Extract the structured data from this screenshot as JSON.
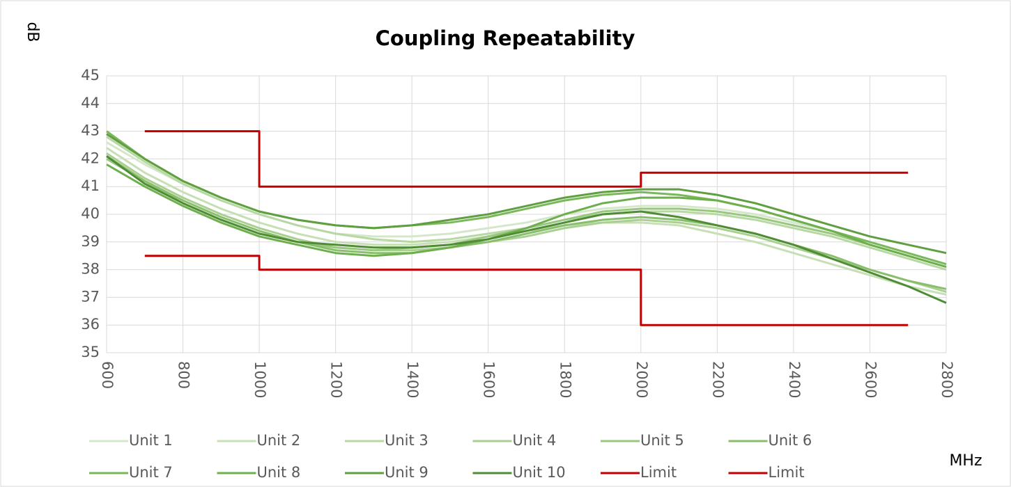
{
  "chart_data": {
    "type": "line",
    "title": "Coupling Repeatability",
    "y_label": "dB",
    "x_label": "MHz",
    "x": [
      600,
      700,
      800,
      900,
      1000,
      1100,
      1200,
      1300,
      1400,
      1500,
      1600,
      1700,
      1800,
      1900,
      2000,
      2100,
      2200,
      2300,
      2400,
      2500,
      2600,
      2700,
      2800
    ],
    "xlim": [
      600,
      2800
    ],
    "xticks": [
      600,
      800,
      1000,
      1200,
      1400,
      1600,
      1800,
      2000,
      2200,
      2400,
      2600,
      2800
    ],
    "ylim": [
      35,
      45
    ],
    "yticks": [
      35,
      36,
      37,
      38,
      39,
      40,
      41,
      42,
      43,
      44,
      45
    ],
    "grid": true,
    "legend": "bottom",
    "series": [
      {
        "name": "Unit 1",
        "color": "#d5e7ca",
        "values": [
          42.6,
          41.8,
          41.1,
          40.5,
          40.0,
          39.6,
          39.3,
          39.2,
          39.2,
          39.3,
          39.5,
          39.7,
          40.0,
          40.2,
          40.3,
          40.3,
          40.2,
          40.0,
          39.7,
          39.4,
          39.0,
          38.6,
          38.2
        ]
      },
      {
        "name": "Unit 2",
        "color": "#c6dfb5",
        "values": [
          42.4,
          41.5,
          40.8,
          40.2,
          39.7,
          39.3,
          39.0,
          38.9,
          38.9,
          39.0,
          39.2,
          39.4,
          39.6,
          39.7,
          39.7,
          39.6,
          39.3,
          39.0,
          38.6,
          38.2,
          37.8,
          37.4,
          37.1
        ]
      },
      {
        "name": "Unit 3",
        "color": "#b8d8a3",
        "values": [
          42.8,
          41.9,
          41.1,
          40.5,
          40.0,
          39.6,
          39.3,
          39.1,
          39.0,
          39.1,
          39.3,
          39.5,
          39.8,
          40.0,
          40.1,
          40.1,
          40.0,
          39.8,
          39.5,
          39.2,
          38.8,
          38.4,
          38.0
        ]
      },
      {
        "name": "Unit 4",
        "color": "#a9cf91",
        "values": [
          42.2,
          41.3,
          40.6,
          40.0,
          39.5,
          39.1,
          38.8,
          38.7,
          38.7,
          38.8,
          39.0,
          39.2,
          39.5,
          39.7,
          39.8,
          39.7,
          39.5,
          39.2,
          38.8,
          38.4,
          38.0,
          37.6,
          37.2
        ]
      },
      {
        "name": "Unit 5",
        "color": "#99c77f",
        "values": [
          42.0,
          41.2,
          40.4,
          39.8,
          39.3,
          39.0,
          38.8,
          38.7,
          38.8,
          38.9,
          39.2,
          39.5,
          39.8,
          40.1,
          40.2,
          40.2,
          40.1,
          39.9,
          39.6,
          39.3,
          38.9,
          38.5,
          38.1
        ]
      },
      {
        "name": "Unit 6",
        "color": "#89bf6c",
        "values": [
          42.1,
          41.2,
          40.5,
          39.9,
          39.4,
          39.0,
          38.7,
          38.6,
          38.6,
          38.8,
          39.0,
          39.3,
          39.6,
          39.8,
          39.9,
          39.8,
          39.6,
          39.3,
          38.9,
          38.5,
          38.0,
          37.6,
          37.3
        ]
      },
      {
        "name": "Unit 7",
        "color": "#7bb85b",
        "values": [
          43.0,
          42.0,
          41.2,
          40.6,
          40.1,
          39.8,
          39.6,
          39.5,
          39.6,
          39.7,
          39.9,
          40.2,
          40.5,
          40.7,
          40.8,
          40.7,
          40.5,
          40.2,
          39.8,
          39.4,
          39.0,
          38.6,
          38.2
        ]
      },
      {
        "name": "Unit 8",
        "color": "#6daf4d",
        "values": [
          41.8,
          41.0,
          40.3,
          39.7,
          39.2,
          38.9,
          38.6,
          38.5,
          38.6,
          38.8,
          39.1,
          39.5,
          40.0,
          40.4,
          40.6,
          40.6,
          40.5,
          40.2,
          39.8,
          39.4,
          38.9,
          38.5,
          38.1
        ]
      },
      {
        "name": "Unit 9",
        "color": "#5f9f40",
        "values": [
          42.9,
          42.0,
          41.2,
          40.6,
          40.1,
          39.8,
          39.6,
          39.5,
          39.6,
          39.8,
          40.0,
          40.3,
          40.6,
          40.8,
          40.9,
          40.9,
          40.7,
          40.4,
          40.0,
          39.6,
          39.2,
          38.9,
          38.6
        ]
      },
      {
        "name": "Unit 10",
        "color": "#4f8c35",
        "values": [
          42.1,
          41.1,
          40.4,
          39.8,
          39.3,
          39.0,
          38.9,
          38.8,
          38.8,
          38.9,
          39.1,
          39.4,
          39.7,
          40.0,
          40.1,
          39.9,
          39.6,
          39.3,
          38.9,
          38.4,
          37.9,
          37.4,
          36.8
        ]
      },
      {
        "name": "Limit",
        "color": "#c00000",
        "x": [
          700,
          1000,
          1000,
          2000,
          2000,
          2700
        ],
        "values": [
          43,
          43,
          41,
          41,
          41.5,
          41.5
        ]
      },
      {
        "name": "Limit",
        "color": "#c00000",
        "x": [
          700,
          1000,
          1000,
          2000,
          2000,
          2700
        ],
        "values": [
          38.5,
          38.5,
          38,
          38,
          36,
          36
        ]
      }
    ]
  }
}
